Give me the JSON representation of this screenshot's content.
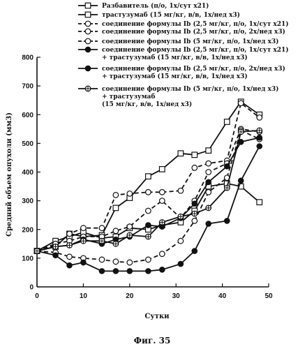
{
  "chart_data": {
    "type": "line",
    "xlabel": "Сутки",
    "ylabel": "Средний объем опухоли (мм3)",
    "caption": "Фиг. 35",
    "xlim": [
      0,
      50
    ],
    "ylim": [
      0,
      800
    ],
    "xticks": [
      0,
      10,
      20,
      30,
      40,
      50
    ],
    "yticks": [
      0,
      100,
      200,
      300,
      400,
      500,
      600,
      700,
      800
    ],
    "grid": false,
    "legend_position": "top",
    "series": [
      {
        "name": "Разбавитель (п/о, 1х/сут х21)",
        "marker": "open-square",
        "line": "solid",
        "x": [
          0,
          4,
          7,
          10,
          14,
          17,
          20,
          24,
          27,
          31,
          34,
          37,
          41,
          44,
          48
        ],
        "y": [
          125,
          140,
          185,
          175,
          180,
          275,
          310,
          385,
          410,
          465,
          460,
          475,
          575,
          645,
          600
        ]
      },
      {
        "name": "трастузумаб (15 мг/кг, в/в, 1х/нед х3)",
        "marker": "open-square",
        "line": "solid",
        "x": [
          0,
          4,
          7,
          10,
          14,
          17,
          20,
          24,
          27,
          31,
          34,
          37,
          41,
          44,
          48
        ],
        "y": [
          125,
          160,
          175,
          190,
          170,
          175,
          205,
          200,
          215,
          225,
          265,
          350,
          360,
          350,
          295
        ]
      },
      {
        "name": "соединение формулы Ib (2,5 мг/кг, п/о, 1х/сут х21)",
        "marker": "open-circle",
        "line": "dashed",
        "x": [
          0,
          4,
          7,
          10,
          14,
          17,
          20,
          24,
          27,
          31,
          34,
          37,
          41,
          44,
          48
        ],
        "y": [
          125,
          145,
          185,
          205,
          205,
          320,
          325,
          330,
          330,
          335,
          415,
          430,
          440,
          640,
          590
        ]
      },
      {
        "name": "соединение формулы Ib (2,5 мг/кг, п/о, 2х/нед х3)",
        "marker": "open-circle",
        "line": "dashed",
        "x": [
          0,
          4,
          7,
          10,
          14,
          17,
          20,
          24,
          27,
          31,
          34,
          37,
          41,
          44,
          48
        ],
        "y": [
          125,
          150,
          160,
          175,
          175,
          195,
          210,
          265,
          300,
          240,
          300,
          400,
          430,
          550,
          540
        ]
      },
      {
        "name": "соединение формулы Ib (5 мг/кг, п/о, 1х/нед х3)",
        "marker": "open-circle",
        "line": "dashed",
        "x": [
          0,
          4,
          7,
          10,
          14,
          17,
          20,
          24,
          27,
          31,
          34,
          37,
          41,
          44,
          48
        ],
        "y": [
          125,
          120,
          105,
          100,
          95,
          88,
          85,
          95,
          115,
          160,
          230,
          330,
          380,
          545,
          515
        ]
      },
      {
        "name": "соединение формулы Ib (2,5 мг/кг, п/о, 1х/сут х21) + трастузумаб (15 мг/кг, в/в, 1х/нед х3)",
        "marker": "filled-circle",
        "line": "solid",
        "x": [
          0,
          4,
          7,
          10,
          14,
          17,
          20,
          24,
          27,
          31,
          34,
          37,
          41,
          44,
          48
        ],
        "y": [
          125,
          140,
          145,
          165,
          150,
          165,
          175,
          215,
          210,
          240,
          290,
          365,
          420,
          505,
          520
        ]
      },
      {
        "name": "соединение формулы Ib (2,5 мг/кг, п/о, 2х/нед х3) + трастузумаб (15 мг/кг, в/в, 1х/нед х3)",
        "marker": "filled-circle",
        "line": "solid",
        "x": [
          0,
          4,
          7,
          10,
          14,
          17,
          20,
          24,
          27,
          31,
          34,
          37,
          41,
          44,
          48
        ],
        "y": [
          125,
          110,
          75,
          85,
          55,
          55,
          55,
          55,
          60,
          80,
          125,
          220,
          230,
          370,
          490
        ]
      },
      {
        "name": "соединение формулы Ib (5 мг/кг, п/о, 1х/нед х3) + трастузумаб (15 мг/кг, в/в, 1х/нед х3)",
        "marker": "crossed-circle",
        "line": "solid",
        "x": [
          0,
          4,
          7,
          10,
          14,
          17,
          20,
          24,
          27,
          31,
          34,
          37,
          41,
          44,
          48
        ],
        "y": [
          125,
          140,
          145,
          160,
          160,
          150,
          180,
          175,
          225,
          245,
          255,
          275,
          345,
          540,
          545
        ]
      }
    ]
  },
  "legend": {
    "entries": [
      {
        "lines": [
          "Разбавитель (п/о, 1х/сут х21)"
        ]
      },
      {
        "lines": [
          "трастузумаб (15 мг/кг, в/в, 1х/нед х3)"
        ]
      },
      {
        "lines": [
          "соединение формулы Ib (2,5 мг/кг, п/о, 1х/сут х21)"
        ]
      },
      {
        "lines": [
          "соединение формулы Ib (2,5 мг/кг, п/о, 2х/нед х3)"
        ]
      },
      {
        "lines": [
          "соединение формулы Ib (5 мг/кг, п/о, 1х/нед х3)"
        ]
      },
      {
        "lines": [
          "соединение формулы Ib (2,5 мг/кг, п/о, 1х/сут х21)",
          "+ трастузумаб (15 мг/кг, в/в, 1х/нед х3)"
        ]
      },
      {
        "lines": [
          "соединение формулы Ib (2,5 мг/кг, п/о, 2х/нед х3)",
          "+ трастузумаб (15 мг/кг, в/в, 1х/нед х3)"
        ]
      },
      {
        "lines": [
          "соединение формулы Ib (5 мг/кг, п/о, 1х/нед х3)",
          "+ трастузумаб",
          "(15 мг/кг, в/в, 1х/нед х3)"
        ]
      }
    ]
  }
}
